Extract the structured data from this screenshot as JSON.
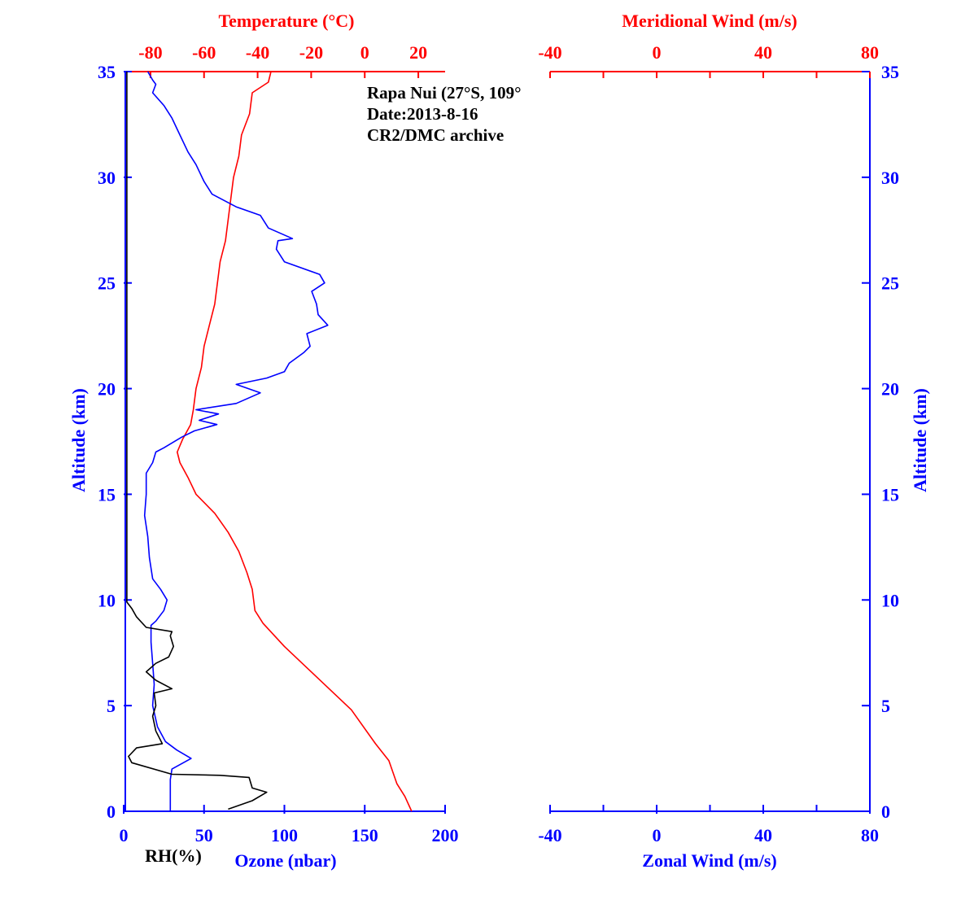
{
  "annotation": {
    "station": "Rapa Nui (27°S, 109°",
    "date": "Date:2013-8-16",
    "source": "CR2/DMC archive"
  },
  "colors": {
    "temperature": "#ff0000",
    "ozone": "#0000ff",
    "rh": "#000000",
    "axes_blue": "#0000ff",
    "axes_red": "#ff0000"
  },
  "chart_data": [
    {
      "type": "line",
      "panel": "left",
      "y_axis": {
        "label": "Altitude (km)",
        "range": [
          0,
          35
        ],
        "ticks": [
          0,
          5,
          10,
          15,
          20,
          25,
          30,
          35
        ],
        "tick_labels": [
          "0",
          "5",
          "10",
          "15",
          "20",
          "25",
          "30",
          "35"
        ]
      },
      "x_axis_bottom": {
        "label": "Ozone (nbar)",
        "secondary_label": "RH(%)",
        "range": [
          0,
          200
        ],
        "ticks": [
          0,
          50,
          100,
          150,
          200
        ],
        "tick_labels": [
          "0",
          "50",
          "100",
          "150",
          "200"
        ]
      },
      "x_axis_top": {
        "label": "Temperature (°C)",
        "range": [
          -90,
          30
        ],
        "ticks": [
          -80,
          -60,
          -40,
          -20,
          0,
          20
        ],
        "tick_labels": [
          "-80",
          "-60",
          "-40",
          "-20",
          "0",
          "20"
        ]
      },
      "series": [
        {
          "name": "Temperature (°C)",
          "axis": "top",
          "color": "#ff0000",
          "points": [
            [
              17.5,
              0
            ],
            [
              15,
              0.7
            ],
            [
              12,
              1.3
            ],
            [
              9,
              2.4
            ],
            [
              4,
              3.2
            ],
            [
              -5,
              4.8
            ],
            [
              -20,
              6.6
            ],
            [
              -30,
              7.8
            ],
            [
              -38,
              8.9
            ],
            [
              -41,
              9.5
            ],
            [
              -42,
              10.5
            ],
            [
              -44,
              11.3
            ],
            [
              -47,
              12.3
            ],
            [
              -51,
              13.2
            ],
            [
              -56,
              14.1
            ],
            [
              -63,
              15.0
            ],
            [
              -66,
              15.8
            ],
            [
              -69,
              16.5
            ],
            [
              -70,
              17.0
            ],
            [
              -68,
              17.6
            ],
            [
              -65,
              18.3
            ],
            [
              -64,
              19.0
            ],
            [
              -63,
              20.0
            ],
            [
              -61,
              21.0
            ],
            [
              -60,
              22.0
            ],
            [
              -58,
              23.0
            ],
            [
              -56,
              24.0
            ],
            [
              -55,
              25.0
            ],
            [
              -54,
              26.0
            ],
            [
              -52,
              27.0
            ],
            [
              -51,
              28.0
            ],
            [
              -50,
              29.0
            ],
            [
              -49,
              30.0
            ],
            [
              -47,
              31.0
            ],
            [
              -46,
              32.0
            ],
            [
              -43,
              33.0
            ],
            [
              -42,
              34.0
            ],
            [
              -36,
              34.5
            ],
            [
              -35,
              35.0
            ]
          ]
        },
        {
          "name": "Ozone (nbar)",
          "axis": "bottom",
          "color": "#0000ff",
          "points": [
            [
              29,
              0
            ],
            [
              29,
              1.0
            ],
            [
              29,
              1.5
            ],
            [
              30,
              2.0
            ],
            [
              42,
              2.5
            ],
            [
              33,
              2.9
            ],
            [
              26,
              3.3
            ],
            [
              21,
              4.0
            ],
            [
              18,
              5.0
            ],
            [
              19,
              6.0
            ],
            [
              18,
              7.0
            ],
            [
              17,
              8.0
            ],
            [
              17,
              8.8
            ],
            [
              20,
              9.0
            ],
            [
              25,
              9.5
            ],
            [
              27,
              10.0
            ],
            [
              23,
              10.5
            ],
            [
              18,
              11.0
            ],
            [
              16,
              12.0
            ],
            [
              15,
              13.0
            ],
            [
              13,
              14.0
            ],
            [
              14,
              15.0
            ],
            [
              14,
              16.0
            ],
            [
              18,
              16.5
            ],
            [
              20,
              17.0
            ],
            [
              25,
              17.2
            ],
            [
              36,
              17.7
            ],
            [
              44,
              18.0
            ],
            [
              58,
              18.3
            ],
            [
              47,
              18.5
            ],
            [
              59,
              18.8
            ],
            [
              45,
              19.0
            ],
            [
              70,
              19.3
            ],
            [
              85,
              19.8
            ],
            [
              70,
              20.2
            ],
            [
              89,
              20.5
            ],
            [
              100,
              20.8
            ],
            [
              103,
              21.2
            ],
            [
              112,
              21.7
            ],
            [
              116,
              22.0
            ],
            [
              114,
              22.6
            ],
            [
              127,
              23.0
            ],
            [
              121,
              23.5
            ],
            [
              120,
              24.0
            ],
            [
              117,
              24.6
            ],
            [
              125,
              25.0
            ],
            [
              122,
              25.4
            ],
            [
              100,
              26.0
            ],
            [
              95,
              26.6
            ],
            [
              96,
              27.0
            ],
            [
              105,
              27.1
            ],
            [
              90,
              27.6
            ],
            [
              85,
              28.2
            ],
            [
              70,
              28.6
            ],
            [
              55,
              29.2
            ],
            [
              50,
              29.8
            ],
            [
              45,
              30.6
            ],
            [
              40,
              31.2
            ],
            [
              35,
              32.0
            ],
            [
              30,
              32.8
            ],
            [
              25,
              33.4
            ],
            [
              18,
              34.0
            ],
            [
              20,
              34.4
            ],
            [
              18,
              34.6
            ],
            [
              15,
              35.0
            ]
          ]
        },
        {
          "name": "RH(%)",
          "axis": "bottom",
          "color": "#000000",
          "points": [
            [
              65,
              0.1
            ],
            [
              80,
              0.5
            ],
            [
              89,
              0.9
            ],
            [
              80,
              1.1
            ],
            [
              78,
              1.6
            ],
            [
              60,
              1.7
            ],
            [
              30,
              1.75
            ],
            [
              5,
              2.3
            ],
            [
              3,
              2.6
            ],
            [
              8,
              3.0
            ],
            [
              24,
              3.2
            ],
            [
              20,
              3.8
            ],
            [
              18,
              4.5
            ],
            [
              20,
              5.0
            ],
            [
              19,
              5.6
            ],
            [
              30,
              5.8
            ],
            [
              20,
              6.2
            ],
            [
              14,
              6.6
            ],
            [
              20,
              7.0
            ],
            [
              28,
              7.3
            ],
            [
              31,
              7.8
            ],
            [
              29,
              8.3
            ],
            [
              30,
              8.5
            ],
            [
              14,
              8.7
            ],
            [
              8,
              9.2
            ],
            [
              5,
              9.6
            ],
            [
              2,
              9.9
            ],
            [
              2,
              12.0
            ],
            [
              2,
              20.0
            ],
            [
              2,
              30.0
            ],
            [
              2,
              35.0
            ]
          ]
        }
      ]
    },
    {
      "type": "line",
      "panel": "right",
      "y_axis": {
        "label": "Altitude (km)",
        "range": [
          0,
          35
        ],
        "ticks": [
          0,
          5,
          10,
          15,
          20,
          25,
          30,
          35
        ],
        "tick_labels": [
          "0",
          "5",
          "10",
          "15",
          "20",
          "25",
          "30",
          "35"
        ]
      },
      "x_axis_bottom": {
        "label": "Zonal Wind (m/s)",
        "range": [
          -40,
          80
        ],
        "ticks": [
          -40,
          0,
          40,
          80
        ],
        "tick_labels": [
          "-40",
          "0",
          "40",
          "80"
        ]
      },
      "x_axis_top": {
        "label": "Meridional Wind (m/s)",
        "range": [
          -40,
          80
        ],
        "ticks": [
          -40,
          0,
          40,
          80
        ],
        "tick_labels": [
          "-40",
          "0",
          "40",
          "80"
        ]
      },
      "series": []
    }
  ]
}
